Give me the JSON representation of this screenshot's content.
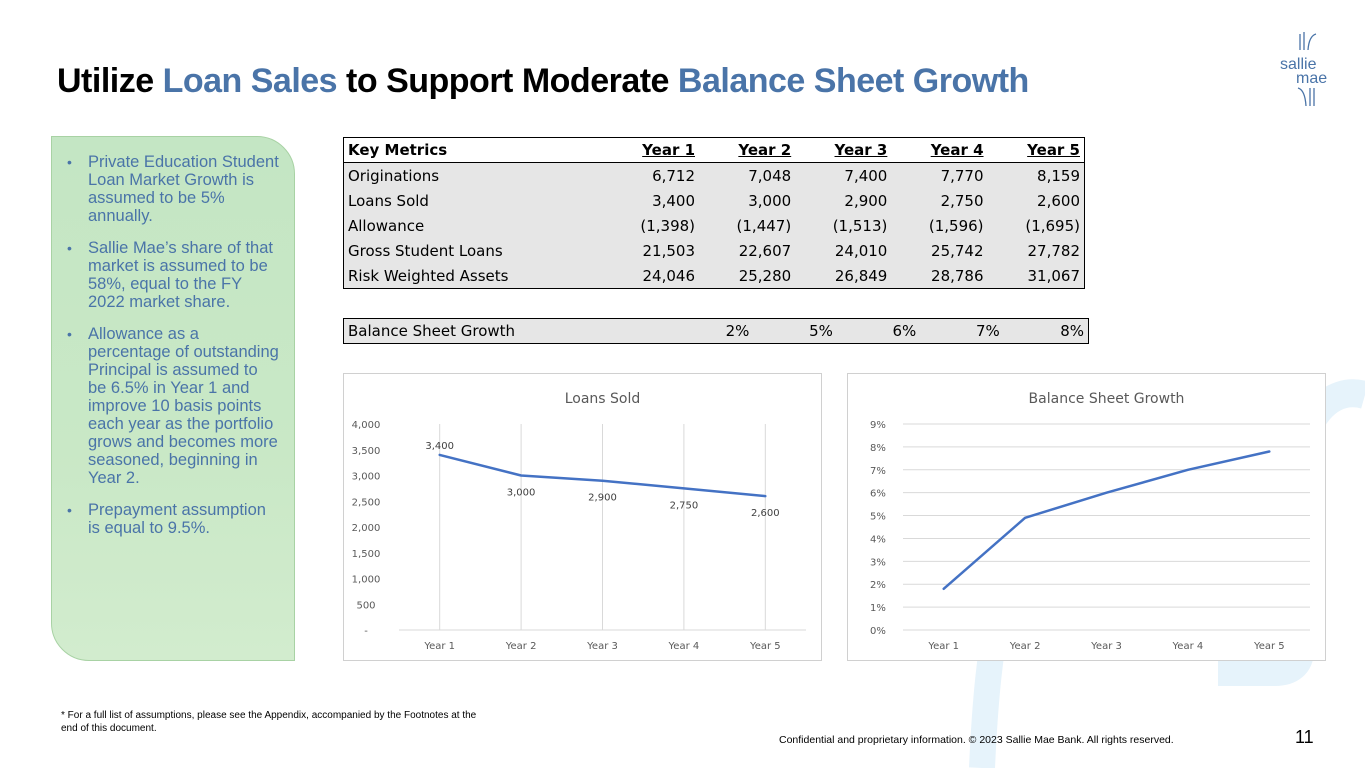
{
  "title": {
    "part1": "Utilize ",
    "part2": "Loan Sales",
    "part3": " to  Support Moderate ",
    "part4": "Balance Sheet Growth"
  },
  "logo": {
    "line1": "sallie",
    "line2": "mae"
  },
  "colors": {
    "brand_blue": "#4a74a8",
    "panel_green": "#c4e6c4",
    "line_blue": "#4472c4",
    "arc": "#e6f3fb"
  },
  "assumptions": [
    "Private Education Student Loan Market Growth is assumed to be 5% annually.",
    "Sallie Mae’s share of that market is assumed to be 58%, equal to the FY 2022 market share.",
    "Allowance as a percentage of outstanding Principal is assumed to be 6.5% in Year 1 and improve 10 basis points each year as the portfolio grows and becomes more seasoned, beginning in Year 2.",
    "Prepayment assumption is equal to 9.5%."
  ],
  "metrics": {
    "headers": [
      "Key Metrics",
      "Year 1",
      "Year 2",
      "Year 3",
      "Year 4",
      "Year 5"
    ],
    "rows": [
      [
        "Originations",
        "6,712",
        "7,048",
        "7,400",
        "7,770",
        "8,159"
      ],
      [
        "Loans Sold",
        "3,400",
        "3,000",
        "2,900",
        "2,750",
        "2,600"
      ],
      [
        "Allowance",
        "(1,398)",
        "(1,447)",
        "(1,513)",
        "(1,596)",
        "(1,695)"
      ],
      [
        "Gross Student Loans",
        "21,503",
        "22,607",
        "24,010",
        "25,742",
        "27,782"
      ],
      [
        "Risk Weighted Assets",
        "24,046",
        "25,280",
        "26,849",
        "28,786",
        "31,067"
      ]
    ]
  },
  "growth_row": [
    "Balance Sheet Growth",
    "2%",
    "5%",
    "6%",
    "7%",
    "8%"
  ],
  "chart_data": [
    {
      "type": "line",
      "title": "Loans Sold",
      "categories": [
        "Year 1",
        "Year 2",
        "Year 3",
        "Year 4",
        "Year 5"
      ],
      "values": [
        3400,
        3000,
        2900,
        2750,
        2600
      ],
      "data_labels": [
        "3,400",
        "3,000",
        "2,900",
        "2,750",
        "2,600"
      ],
      "ylim": [
        0,
        4000
      ],
      "ytick_values": [
        0,
        500,
        1000,
        1500,
        2000,
        2500,
        3000,
        3500,
        4000
      ],
      "ytick_labels": [
        "-",
        "500",
        "1,000",
        "1,500",
        "2,000",
        "2,500",
        "3,000",
        "3,500",
        "4,000"
      ],
      "grid": "vertical",
      "xlabel": "",
      "ylabel": ""
    },
    {
      "type": "line",
      "title": "Balance Sheet Growth",
      "categories": [
        "Year 1",
        "Year 2",
        "Year 3",
        "Year 4",
        "Year 5"
      ],
      "values": [
        1.8,
        4.9,
        6.0,
        7.0,
        7.8
      ],
      "ylim": [
        0,
        9
      ],
      "ytick_values": [
        0,
        1,
        2,
        3,
        4,
        5,
        6,
        7,
        8,
        9
      ],
      "ytick_labels": [
        "0%",
        "1%",
        "2%",
        "3%",
        "4%",
        "5%",
        "6%",
        "7%",
        "8%",
        "9%"
      ],
      "grid": "horizontal",
      "xlabel": "",
      "ylabel": ""
    }
  ],
  "footnote": "* For a full list of assumptions, please see the Appendix, accompanied by the Footnotes at the end of this document.",
  "footer": "Confidential and proprietary information. © 2023 Sallie Mae Bank. All rights reserved.",
  "page_number": "11"
}
